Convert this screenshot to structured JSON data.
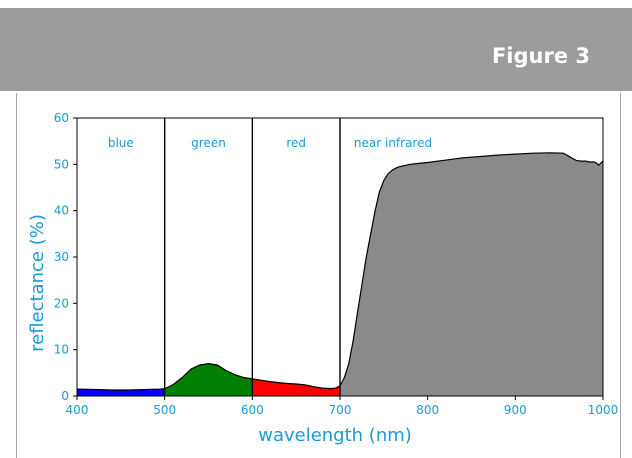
{
  "header": {
    "title": "Figure 3"
  },
  "colors": {
    "header_bg": "#9c9c9c",
    "label": "#1b9ad6",
    "blue": "#0000ff",
    "green": "#008000",
    "red": "#ff0000",
    "nir": "#8a8a8a"
  },
  "chart_data": {
    "type": "area",
    "title": "",
    "xlabel": "wavelength (nm)",
    "ylabel": "reflectance (%)",
    "xlim": [
      400,
      1000
    ],
    "ylim": [
      0,
      60
    ],
    "xticks": [
      400,
      500,
      600,
      700,
      800,
      900,
      1000
    ],
    "yticks": [
      0,
      10,
      20,
      30,
      40,
      50,
      60
    ],
    "grid": false,
    "bands": [
      {
        "name": "blue",
        "from": 400,
        "to": 500,
        "color": "#0000ff"
      },
      {
        "name": "green",
        "from": 500,
        "to": 600,
        "color": "#008000"
      },
      {
        "name": "red",
        "from": 600,
        "to": 700,
        "color": "#ff0000"
      },
      {
        "name": "near infrared",
        "from": 700,
        "to": 1000,
        "color": "#8a8a8a"
      }
    ],
    "boundaries": [
      500,
      600,
      700
    ],
    "series": [
      {
        "x": [
          400,
          420,
          440,
          460,
          480,
          495,
          500,
          505,
          510,
          520,
          530,
          540,
          550,
          560,
          570,
          580,
          590,
          600,
          610,
          620,
          630,
          640,
          650,
          660,
          670,
          680,
          690,
          695,
          700,
          705,
          710,
          715,
          720,
          725,
          730,
          735,
          740,
          745,
          750,
          755,
          760,
          765,
          770,
          775,
          780,
          790,
          800,
          820,
          840,
          860,
          880,
          900,
          920,
          940,
          955,
          965,
          970,
          975,
          980,
          985,
          990,
          993,
          995,
          997,
          1000
        ],
        "values": [
          1.5,
          1.4,
          1.3,
          1.3,
          1.4,
          1.5,
          1.6,
          2.0,
          2.5,
          4.0,
          5.8,
          6.7,
          7.0,
          6.7,
          5.5,
          4.6,
          4.0,
          3.7,
          3.4,
          3.1,
          2.9,
          2.7,
          2.6,
          2.4,
          2.0,
          1.7,
          1.6,
          1.7,
          2.2,
          4.0,
          7.0,
          12.0,
          18.0,
          24.0,
          30.0,
          35.0,
          40.0,
          44.0,
          46.5,
          48.0,
          48.8,
          49.3,
          49.6,
          49.8,
          50.0,
          50.2,
          50.4,
          50.9,
          51.4,
          51.7,
          52.0,
          52.2,
          52.4,
          52.5,
          52.4,
          51.3,
          50.8,
          50.7,
          50.7,
          50.5,
          50.5,
          50.2,
          49.8,
          50.2,
          50.7
        ]
      }
    ]
  }
}
